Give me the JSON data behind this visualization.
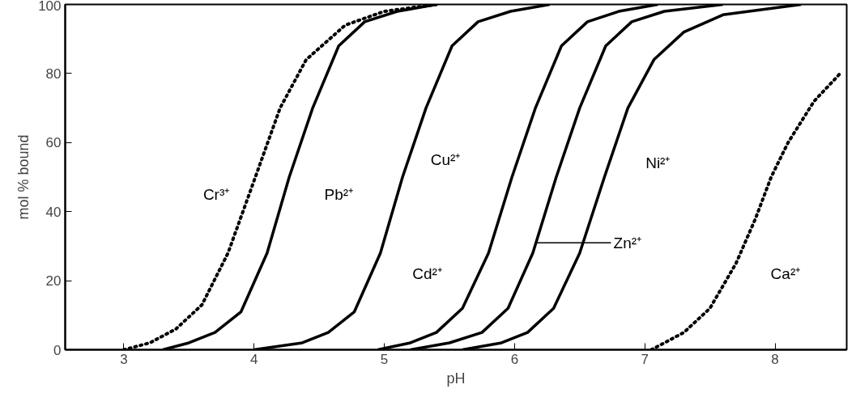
{
  "chart_data": {
    "type": "line",
    "xlabel": "pH",
    "ylabel": "mol % bound",
    "xlim": [
      2.55,
      8.55
    ],
    "ylim": [
      0,
      100
    ],
    "xticks": [
      3,
      4,
      5,
      6,
      7,
      8
    ],
    "yticks": [
      0,
      20,
      40,
      60,
      80,
      100
    ],
    "grid": false,
    "marker": "none",
    "series": [
      {
        "name": "Cr³⁺",
        "color": "#000000",
        "line_style": "dotted",
        "x": [
          3.0,
          3.2,
          3.4,
          3.6,
          3.8,
          4.01,
          4.2,
          4.4,
          4.7,
          5.0,
          5.4
        ],
        "values": [
          0,
          2,
          6,
          13,
          28,
          50,
          70,
          84,
          94,
          98,
          100
        ]
      },
      {
        "name": "Pb²⁺",
        "color": "#000000",
        "line_style": "solid",
        "x": [
          3.3,
          3.5,
          3.7,
          3.9,
          4.1,
          4.27,
          4.45,
          4.65,
          4.85,
          5.1,
          5.4
        ],
        "values": [
          0,
          2,
          5,
          11,
          28,
          50,
          70,
          88,
          95,
          98,
          100
        ]
      },
      {
        "name": "Cu²⁺",
        "color": "#000000",
        "line_style": "solid",
        "x": [
          4.0,
          4.37,
          4.57,
          4.77,
          4.97,
          5.14,
          5.32,
          5.52,
          5.72,
          5.97,
          6.27
        ],
        "values": [
          0,
          2,
          5,
          11,
          28,
          50,
          70,
          88,
          95,
          98,
          100
        ]
      },
      {
        "name": "Cd²⁺",
        "color": "#000000",
        "line_style": "solid",
        "x": [
          4.95,
          5.2,
          5.4,
          5.6,
          5.8,
          5.98,
          6.16,
          6.36,
          6.56,
          6.8,
          7.1
        ],
        "values": [
          0,
          2,
          5,
          12,
          28,
          50,
          70,
          88,
          95,
          98,
          100
        ]
      },
      {
        "name": "Zn²⁺",
        "color": "#000000",
        "line_style": "solid",
        "x": [
          5.2,
          5.5,
          5.75,
          5.95,
          6.14,
          6.32,
          6.5,
          6.7,
          6.9,
          7.15,
          7.6
        ],
        "values": [
          0,
          2,
          5,
          12,
          28,
          50,
          70,
          88,
          95,
          98,
          100
        ]
      },
      {
        "name": "Ni²⁺",
        "color": "#000000",
        "line_style": "solid",
        "x": [
          5.6,
          5.9,
          6.1,
          6.3,
          6.5,
          6.69,
          6.87,
          7.07,
          7.3,
          7.6,
          8.2
        ],
        "values": [
          0,
          2,
          5,
          12,
          28,
          50,
          70,
          84,
          92,
          97,
          100
        ]
      },
      {
        "name": "Ca²⁺",
        "color": "#000000",
        "line_style": "dotted",
        "x": [
          7.05,
          7.3,
          7.5,
          7.7,
          7.85,
          7.97,
          8.1,
          8.3,
          8.5
        ],
        "values": [
          0,
          5,
          12,
          25,
          38,
          50,
          60,
          72,
          80
        ]
      }
    ]
  }
}
